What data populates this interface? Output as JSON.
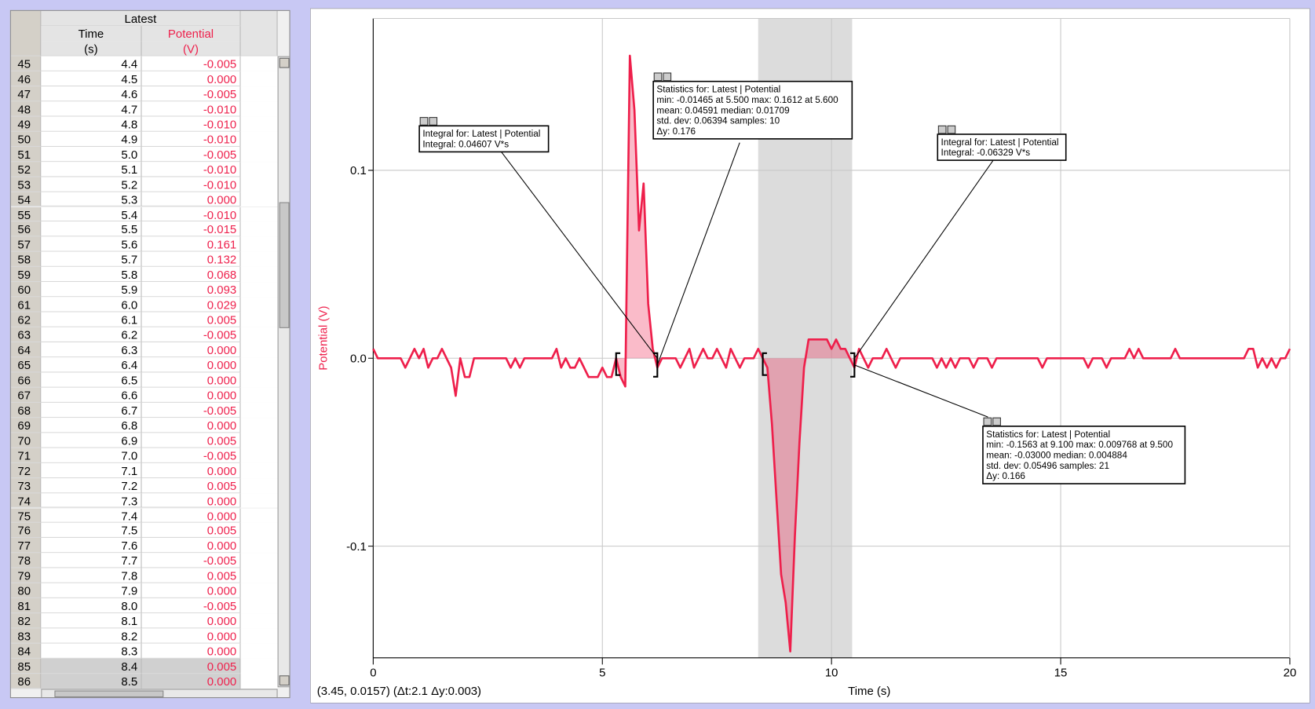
{
  "table": {
    "group": "Latest",
    "columns": [
      {
        "name": "Time",
        "unit": "(s)"
      },
      {
        "name": "Potential",
        "unit": "(V)"
      }
    ],
    "rows": [
      [
        "45",
        "4.4",
        "-0.005"
      ],
      [
        "46",
        "4.5",
        "0.000"
      ],
      [
        "47",
        "4.6",
        "-0.005"
      ],
      [
        "48",
        "4.7",
        "-0.010"
      ],
      [
        "49",
        "4.8",
        "-0.010"
      ],
      [
        "50",
        "4.9",
        "-0.010"
      ],
      [
        "51",
        "5.0",
        "-0.005"
      ],
      [
        "52",
        "5.1",
        "-0.010"
      ],
      [
        "53",
        "5.2",
        "-0.010"
      ],
      [
        "54",
        "5.3",
        "0.000"
      ],
      [
        "55",
        "5.4",
        "-0.010"
      ],
      [
        "56",
        "5.5",
        "-0.015"
      ],
      [
        "57",
        "5.6",
        "0.161"
      ],
      [
        "58",
        "5.7",
        "0.132"
      ],
      [
        "59",
        "5.8",
        "0.068"
      ],
      [
        "60",
        "5.9",
        "0.093"
      ],
      [
        "61",
        "6.0",
        "0.029"
      ],
      [
        "62",
        "6.1",
        "0.005"
      ],
      [
        "63",
        "6.2",
        "-0.005"
      ],
      [
        "64",
        "6.3",
        "0.000"
      ],
      [
        "65",
        "6.4",
        "0.000"
      ],
      [
        "66",
        "6.5",
        "0.000"
      ],
      [
        "67",
        "6.6",
        "0.000"
      ],
      [
        "68",
        "6.7",
        "-0.005"
      ],
      [
        "69",
        "6.8",
        "0.000"
      ],
      [
        "70",
        "6.9",
        "0.005"
      ],
      [
        "71",
        "7.0",
        "-0.005"
      ],
      [
        "72",
        "7.1",
        "0.000"
      ],
      [
        "73",
        "7.2",
        "0.005"
      ],
      [
        "74",
        "7.3",
        "0.000"
      ],
      [
        "75",
        "7.4",
        "0.000"
      ],
      [
        "76",
        "7.5",
        "0.005"
      ],
      [
        "77",
        "7.6",
        "0.000"
      ],
      [
        "78",
        "7.7",
        "-0.005"
      ],
      [
        "79",
        "7.8",
        "0.005"
      ],
      [
        "80",
        "7.9",
        "0.000"
      ],
      [
        "81",
        "8.0",
        "-0.005"
      ],
      [
        "82",
        "8.1",
        "0.000"
      ],
      [
        "83",
        "8.2",
        "0.000"
      ],
      [
        "84",
        "8.3",
        "0.000"
      ],
      [
        "85",
        "8.4",
        "0.005"
      ],
      [
        "86",
        "8.5",
        "0.000"
      ]
    ]
  },
  "chart_data": {
    "type": "line",
    "xlabel": "Time (s)",
    "ylabel": "Potential (V)",
    "xlim": [
      0,
      20
    ],
    "ylim": [
      -0.1594,
      0.1808
    ],
    "xticks": [
      0,
      5,
      10,
      15,
      20
    ],
    "yticks": [
      {
        "value": 0.1,
        "label": "0.1"
      },
      {
        "value": 0,
        "label": "0.0"
      },
      {
        "value": -0.1,
        "label": "-0.1"
      }
    ],
    "grid": true,
    "selection": [
      8.4,
      10.45
    ],
    "regions": [
      {
        "from": 5.3,
        "to": 6.2
      },
      {
        "from": 8.5,
        "to": 10.5
      }
    ],
    "x": [
      0,
      0.1,
      0.2,
      0.3,
      0.4,
      0.5,
      0.6,
      0.7,
      0.8,
      0.9,
      1,
      1.1,
      1.2,
      1.3,
      1.4,
      1.5,
      1.6,
      1.7,
      1.8,
      1.9,
      2,
      2.1,
      2.2,
      2.3,
      2.4,
      2.5,
      2.6,
      2.7,
      2.8,
      2.9,
      3,
      3.1,
      3.2,
      3.3,
      3.4,
      3.5,
      3.6,
      3.7,
      3.8,
      3.9,
      4,
      4.1,
      4.2,
      4.3,
      4.4,
      4.5,
      4.6,
      4.7,
      4.8,
      4.9,
      5,
      5.1,
      5.2,
      5.3,
      5.4,
      5.5,
      5.6,
      5.7,
      5.8,
      5.9,
      6,
      6.1,
      6.2,
      6.3,
      6.4,
      6.5,
      6.6,
      6.7,
      6.8,
      6.9,
      7,
      7.1,
      7.2,
      7.3,
      7.4,
      7.5,
      7.6,
      7.7,
      7.8,
      7.9,
      8,
      8.1,
      8.2,
      8.3,
      8.4,
      8.5,
      8.6,
      8.7,
      8.8,
      8.9,
      9,
      9.1,
      9.2,
      9.3,
      9.4,
      9.5,
      9.6,
      9.7,
      9.8,
      9.9,
      10,
      10.1,
      10.2,
      10.3,
      10.4,
      10.5,
      10.6,
      10.7,
      10.8,
      10.9,
      11,
      11.1,
      11.2,
      11.3,
      11.4,
      11.5,
      11.6,
      11.7,
      11.8,
      11.9,
      12,
      12.1,
      12.2,
      12.3,
      12.4,
      12.5,
      12.6,
      12.7,
      12.8,
      12.9,
      13,
      13.1,
      13.2,
      13.3,
      13.4,
      13.5,
      13.6,
      13.7,
      13.8,
      13.9,
      14,
      14.1,
      14.2,
      14.3,
      14.4,
      14.5,
      14.6,
      14.7,
      14.8,
      14.9,
      15,
      15.1,
      15.2,
      15.3,
      15.4,
      15.5,
      15.6,
      15.7,
      15.8,
      15.9,
      16,
      16.1,
      16.2,
      16.3,
      16.4,
      16.5,
      16.6,
      16.7,
      16.8,
      16.9,
      17,
      17.1,
      17.2,
      17.3,
      17.4,
      17.5,
      17.6,
      17.7,
      17.8,
      17.9,
      18,
      18.1,
      18.2,
      18.3,
      18.4,
      18.5,
      18.6,
      18.7,
      18.8,
      18.9,
      19,
      19.1,
      19.2,
      19.3,
      19.4,
      19.5,
      19.6,
      19.7,
      19.8,
      19.9,
      20
    ],
    "series": [
      {
        "name": "Potential",
        "color": "#ee1f4b",
        "values": [
          0.005,
          0,
          0,
          0,
          0,
          0,
          0,
          -0.005,
          0,
          0.005,
          0,
          0.005,
          -0.005,
          0,
          0,
          0.005,
          0,
          -0.005,
          -0.02,
          0,
          -0.01,
          -0.01,
          0,
          0,
          0,
          0,
          0,
          0,
          0,
          0,
          -0.005,
          0,
          -0.005,
          0,
          0,
          0,
          0,
          0,
          0,
          0,
          0.005,
          -0.005,
          0,
          -0.005,
          -0.005,
          0,
          -0.005,
          -0.01,
          -0.01,
          -0.01,
          -0.005,
          -0.01,
          -0.01,
          0,
          -0.01,
          -0.015,
          0.161,
          0.132,
          0.068,
          0.093,
          0.029,
          0.005,
          -0.005,
          0,
          0,
          0,
          0,
          -0.005,
          0,
          0.005,
          -0.005,
          0,
          0.005,
          0,
          0,
          0.005,
          0,
          -0.005,
          0.005,
          0,
          -0.005,
          0,
          0,
          0,
          0.005,
          0,
          -0.005,
          -0.035,
          -0.075,
          -0.115,
          -0.13,
          -0.156,
          -0.095,
          -0.045,
          -0.005,
          0.01,
          0.01,
          0.01,
          0.01,
          0.01,
          0.005,
          0.01,
          0.005,
          0.005,
          0,
          -0.005,
          0.005,
          0,
          -0.005,
          0,
          0,
          0,
          0.005,
          0,
          -0.005,
          0,
          0,
          0,
          0,
          0,
          0,
          0,
          0,
          -0.005,
          0,
          -0.005,
          0,
          -0.005,
          0,
          0,
          0,
          -0.005,
          0,
          0,
          0,
          -0.005,
          0,
          0,
          0,
          0,
          0,
          0,
          0,
          0,
          0,
          0,
          -0.005,
          0,
          0,
          0,
          0,
          0,
          0,
          0,
          0,
          0,
          -0.005,
          0,
          0,
          0,
          -0.005,
          0,
          0,
          0,
          0,
          0.005,
          0,
          0.005,
          0,
          0,
          0,
          0,
          0,
          0,
          0,
          0.005,
          0,
          0,
          0,
          0,
          0,
          0,
          0,
          0,
          0,
          0,
          0,
          0,
          0,
          0,
          0,
          0.005,
          0.005,
          -0.005,
          0,
          -0.005,
          0,
          -0.005,
          0,
          0,
          0.005
        ]
      }
    ],
    "annotations": [
      {
        "lines": [
          "Integral for: Latest | Potential",
          "Integral: 0.04607 V*s"
        ]
      },
      {
        "lines": [
          "Statistics for: Latest | Potential",
          "min: -0.01465 at 5.500 max: 0.1612 at 5.600",
          "mean: 0.04591 median: 0.01709",
          "std. dev: 0.06394 samples: 10",
          "Δy: 0.176"
        ]
      },
      {
        "lines": [
          "Integral for: Latest | Potential",
          "Integral: -0.06329 V*s"
        ]
      },
      {
        "lines": [
          "Statistics for: Latest | Potential",
          "min: -0.1563 at 9.100 max: 0.009768 at 9.500",
          "mean: -0.03000 median: 0.004884",
          "std. dev: 0.05496 samples: 21",
          "Δy: 0.166"
        ]
      }
    ],
    "status": "(3.45, 0.0157) (Δt:2.1 Δy:0.003)"
  }
}
